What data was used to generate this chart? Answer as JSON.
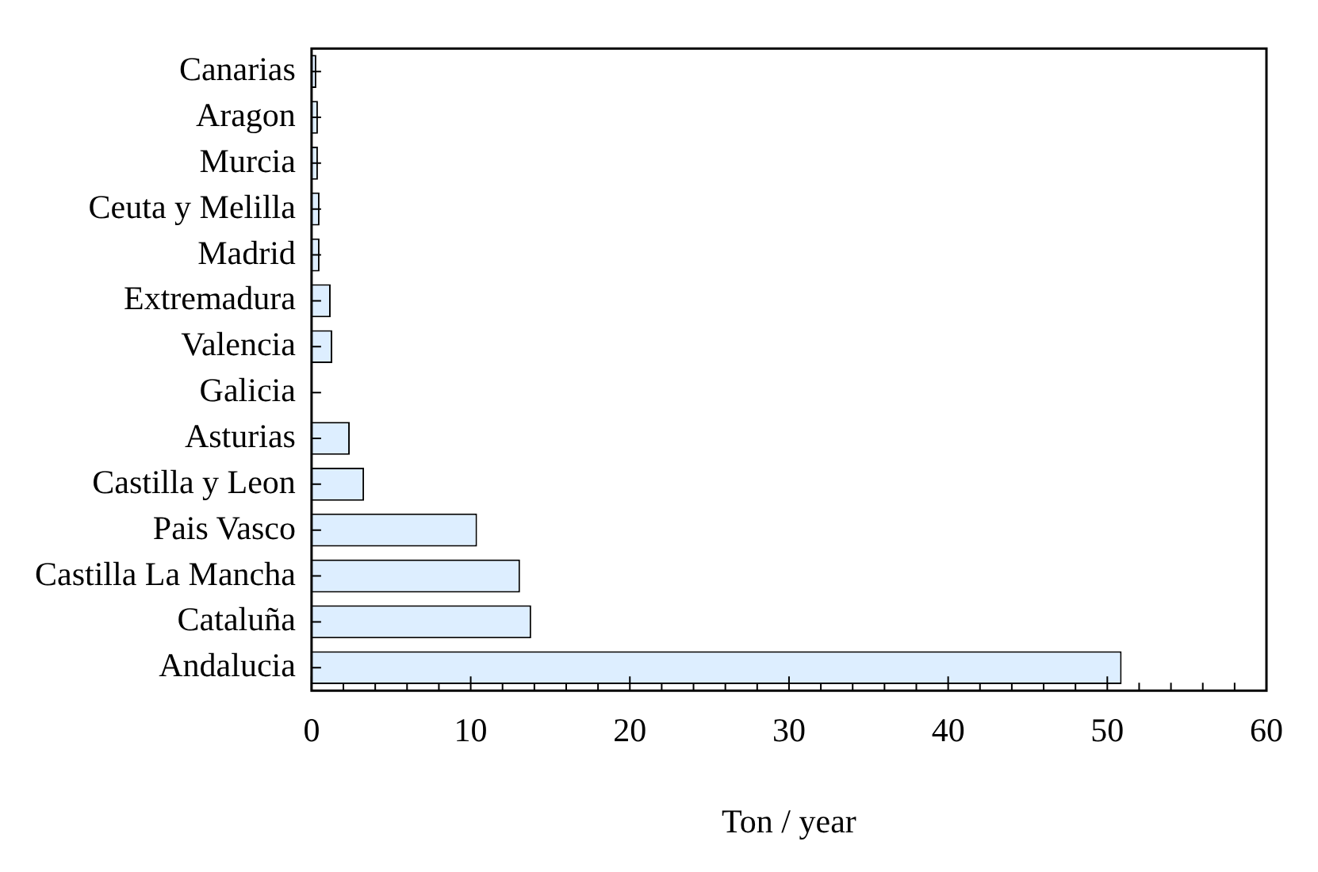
{
  "chart_data": {
    "type": "bar",
    "orientation": "horizontal",
    "xlabel": "Ton / year",
    "categories": [
      "Canarias",
      "Aragon",
      "Murcia",
      "Ceuta y Melilla",
      "Madrid",
      "Extremadura",
      "Valencia",
      "Galicia",
      "Asturias",
      "Castilla y Leon",
      "Pais Vasco",
      "Castilla La Mancha",
      "Cataluña",
      "Andalucia"
    ],
    "values": [
      0.3,
      0.4,
      0.4,
      0.5,
      0.5,
      1.2,
      1.3,
      0,
      2.4,
      3.3,
      10.4,
      13.1,
      13.8,
      50.9
    ],
    "color": "#ddeeff",
    "xlim": [
      0,
      60
    ],
    "xticks": [
      0,
      {
        "value": 2,
        "label": null
      },
      {
        "value": 4,
        "label": null
      },
      {
        "value": 6,
        "label": null
      },
      {
        "value": 8,
        "label": null
      },
      10,
      {
        "value": 12,
        "label": null
      },
      {
        "value": 14,
        "label": null
      },
      {
        "value": 16,
        "label": null
      },
      {
        "value": 18,
        "label": null
      },
      20,
      {
        "value": 22,
        "label": null
      },
      {
        "value": 24,
        "label": null
      },
      {
        "value": 26,
        "label": null
      },
      {
        "value": 28,
        "label": null
      },
      30,
      {
        "value": 32,
        "label": null
      },
      {
        "value": 34,
        "label": null
      },
      {
        "value": 36,
        "label": null
      },
      {
        "value": 38,
        "label": null
      },
      40,
      {
        "value": 42,
        "label": null
      },
      {
        "value": 44,
        "label": null
      },
      {
        "value": 46,
        "label": null
      },
      {
        "value": 48,
        "label": null
      },
      50,
      {
        "value": 52,
        "label": null
      },
      {
        "value": 54,
        "label": null
      },
      {
        "value": 56,
        "label": null
      },
      {
        "value": 58,
        "label": null
      },
      60
    ],
    "grid": false,
    "legend": false
  }
}
